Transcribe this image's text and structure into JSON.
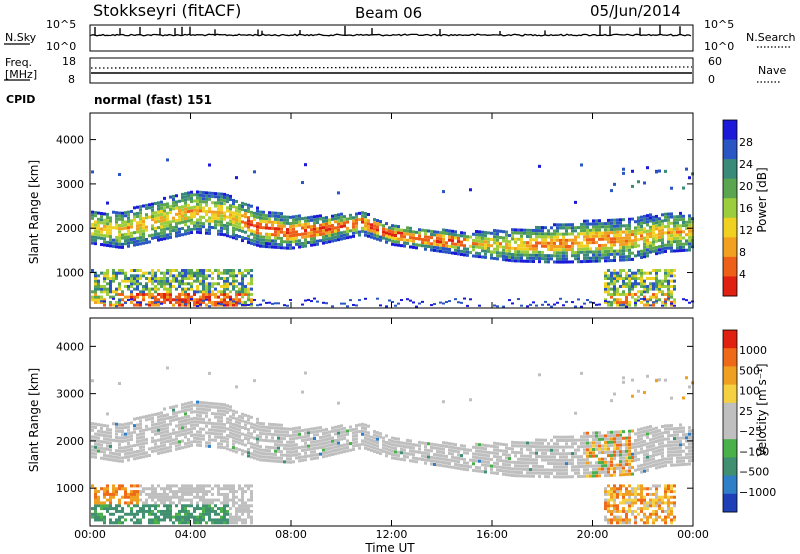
{
  "header": {
    "station": "Stokkseyri (fitACF)",
    "beam": "Beam 06",
    "date": "05/Jun/2014"
  },
  "noise_panel": {
    "left_label": "N.Sky",
    "right_label": "N.Search",
    "top_tick": "10^5",
    "bottom_tick": "10^0"
  },
  "freq_panel": {
    "left_label_1": "Freq.",
    "left_label_2": "[MHz]",
    "left_ticks": [
      "18",
      "8"
    ],
    "right_label": "Nave",
    "right_ticks": [
      "60",
      "0"
    ]
  },
  "cpid": {
    "label": "CPID",
    "value": "normal (fast) 151"
  },
  "chart_data": [
    {
      "type": "heatmap",
      "name_id": "power",
      "ylabel": "Slant Range [km]",
      "colorbar_label": "Power [dB]",
      "colorbar_ticks": [
        "28",
        "24",
        "20",
        "16",
        "12",
        "8",
        "4"
      ],
      "colors": [
        "#1a1ad8",
        "#2a56c4",
        "#3a8a7a",
        "#5aa550",
        "#9ccd3c",
        "#f0d020",
        "#f2a020",
        "#ee6018",
        "#e02010"
      ],
      "y_ticks": [
        "4000",
        "3000",
        "2000",
        "1000"
      ],
      "ylim": [
        200,
        4600
      ]
    },
    {
      "type": "heatmap",
      "name_id": "velocity",
      "ylabel": "Slant Range [km]",
      "colorbar_label": "Velocity [m s⁻¹]",
      "colorbar_ticks": [
        "1000",
        "500",
        "100",
        "25",
        "−25",
        "−100",
        "−500",
        "−1000"
      ],
      "colors": [
        "#1f3fb8",
        "#2f7ec8",
        "#3f8f70",
        "#4ab04a",
        "#bfbfbf",
        "#bfbfbf",
        "#f5d040",
        "#f0a020",
        "#ee6a18",
        "#e02010"
      ],
      "y_ticks": [
        "4000",
        "3000",
        "2000",
        "1000"
      ],
      "ylim": [
        200,
        4600
      ]
    }
  ],
  "x_axis": {
    "ticks": [
      "00:00",
      "04:00",
      "08:00",
      "12:00",
      "16:00",
      "20:00",
      "00:00"
    ],
    "label": "Time UT"
  }
}
